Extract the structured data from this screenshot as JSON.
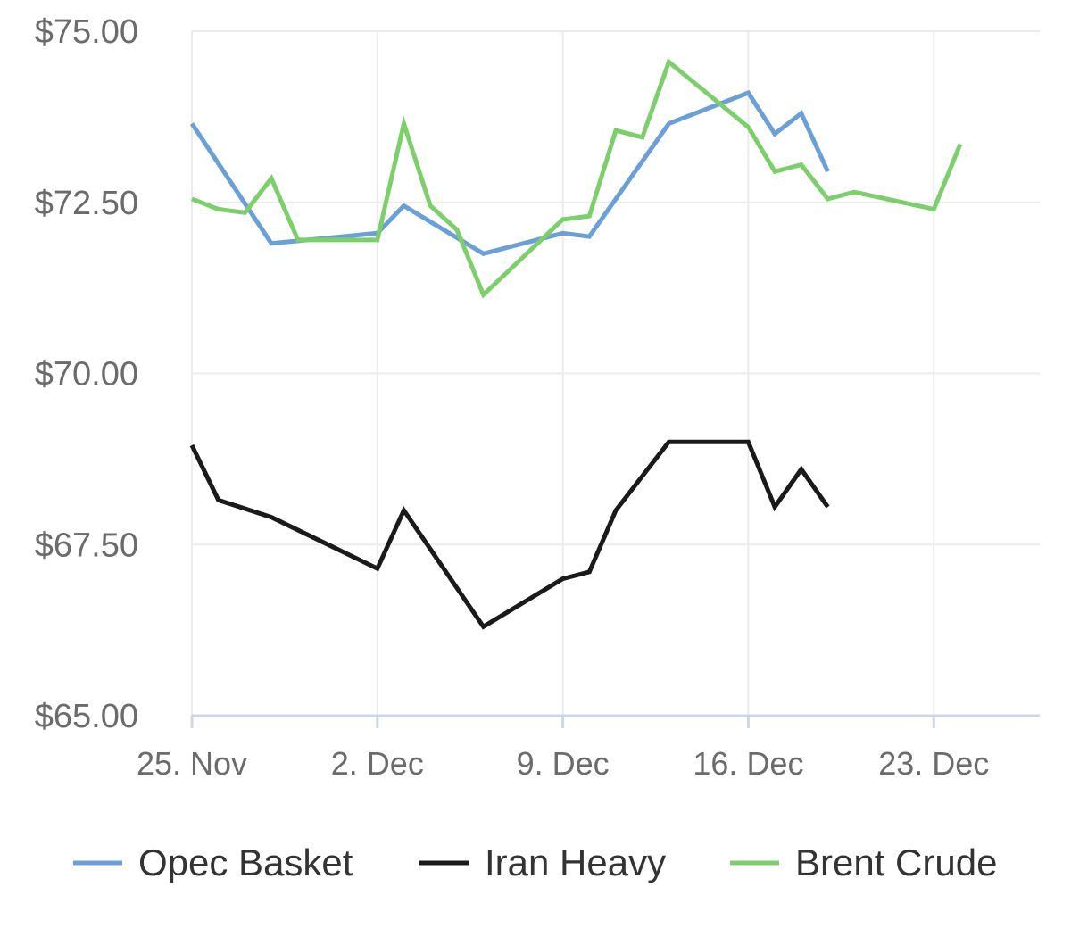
{
  "chart_data": {
    "type": "line",
    "title": "",
    "xlabel": "",
    "ylabel": "",
    "x_domain": [
      "2019-11-25",
      "2019-12-27"
    ],
    "xticks": [
      {
        "date": "2019-11-25",
        "label": "25. Nov"
      },
      {
        "date": "2019-12-02",
        "label": "2. Dec"
      },
      {
        "date": "2019-12-09",
        "label": "9. Dec"
      },
      {
        "date": "2019-12-16",
        "label": "16. Dec"
      },
      {
        "date": "2019-12-23",
        "label": "23. Dec"
      }
    ],
    "ylim": [
      65,
      75
    ],
    "yticks": [
      {
        "value": 65,
        "label": "$65.00"
      },
      {
        "value": 67.5,
        "label": "$67.50"
      },
      {
        "value": 70,
        "label": "$70.00"
      },
      {
        "value": 72.5,
        "label": "$72.50"
      },
      {
        "value": 75,
        "label": "$75.00"
      }
    ],
    "grid": true,
    "legend_position": "bottom",
    "series": [
      {
        "name": "Opec Basket",
        "color": "#6b9fd8",
        "points": [
          [
            "2019-11-25",
            73.65
          ],
          [
            "2019-11-28",
            71.9
          ],
          [
            "2019-12-02",
            72.05
          ],
          [
            "2019-12-03",
            72.45
          ],
          [
            "2019-12-06",
            71.75
          ],
          [
            "2019-12-09",
            72.05
          ],
          [
            "2019-12-10",
            72.0
          ],
          [
            "2019-12-13",
            73.65
          ],
          [
            "2019-12-16",
            74.1
          ],
          [
            "2019-12-17",
            73.5
          ],
          [
            "2019-12-18",
            73.8
          ],
          [
            "2019-12-19",
            72.95
          ]
        ]
      },
      {
        "name": "Iran Heavy",
        "color": "#1a1a1a",
        "points": [
          [
            "2019-11-25",
            68.95
          ],
          [
            "2019-11-26",
            68.15
          ],
          [
            "2019-11-28",
            67.9
          ],
          [
            "2019-12-02",
            67.15
          ],
          [
            "2019-12-03",
            68.0
          ],
          [
            "2019-12-06",
            66.3
          ],
          [
            "2019-12-09",
            67.0
          ],
          [
            "2019-12-10",
            67.1
          ],
          [
            "2019-12-11",
            68.0
          ],
          [
            "2019-12-13",
            69.0
          ],
          [
            "2019-12-16",
            69.0
          ],
          [
            "2019-12-17",
            68.05
          ],
          [
            "2019-12-18",
            68.6
          ],
          [
            "2019-12-19",
            68.05
          ]
        ]
      },
      {
        "name": "Brent Crude",
        "color": "#7ccf6b",
        "points": [
          [
            "2019-11-25",
            72.55
          ],
          [
            "2019-11-26",
            72.4
          ],
          [
            "2019-11-27",
            72.35
          ],
          [
            "2019-11-28",
            72.85
          ],
          [
            "2019-11-29",
            71.95
          ],
          [
            "2019-12-02",
            71.95
          ],
          [
            "2019-12-03",
            73.65
          ],
          [
            "2019-12-04",
            72.45
          ],
          [
            "2019-12-05",
            72.1
          ],
          [
            "2019-12-06",
            71.15
          ],
          [
            "2019-12-09",
            72.25
          ],
          [
            "2019-12-10",
            72.3
          ],
          [
            "2019-12-11",
            73.55
          ],
          [
            "2019-12-12",
            73.45
          ],
          [
            "2019-12-13",
            74.55
          ],
          [
            "2019-12-16",
            73.6
          ],
          [
            "2019-12-17",
            72.95
          ],
          [
            "2019-12-18",
            73.05
          ],
          [
            "2019-12-19",
            72.55
          ],
          [
            "2019-12-20",
            72.65
          ],
          [
            "2019-12-23",
            72.4
          ],
          [
            "2019-12-24",
            73.35
          ]
        ]
      }
    ]
  }
}
